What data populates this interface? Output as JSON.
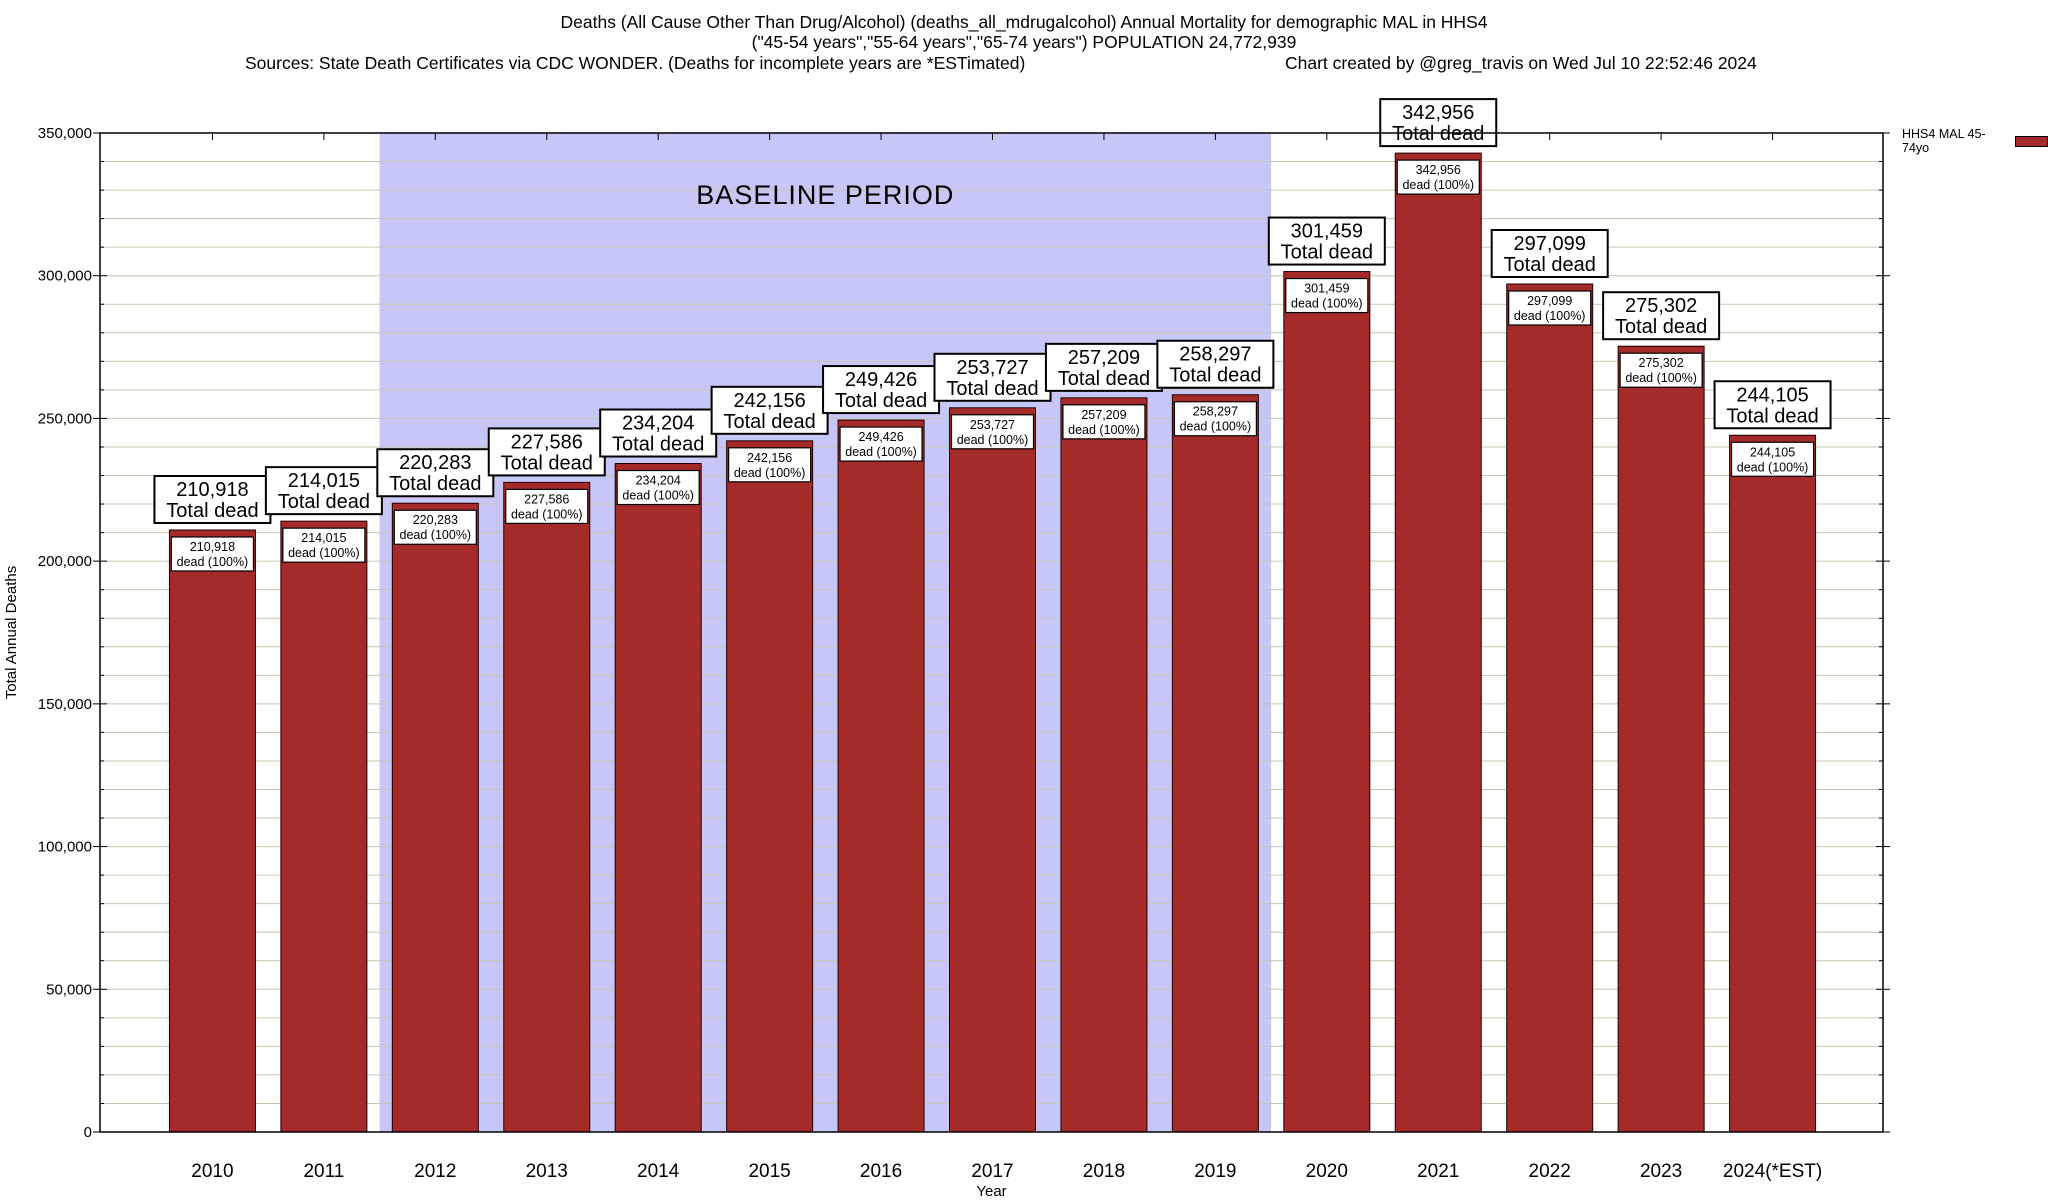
{
  "header": {
    "title_line1": "Deaths (All Cause Other Than Drug/Alcohol) (deaths_all_mdrugalcohol) Annual Mortality for demographic MAL in HHS4",
    "title_line2": "(\"45-54 years\",\"55-64 years\",\"65-74 years\") POPULATION 24,772,939",
    "sources": "Sources: State Death Certificates via CDC WONDER. (Deaths for incomplete years are *ESTimated)",
    "created_by": "Chart created by @greg_travis on Wed Jul 10 22:52:46 2024"
  },
  "chart_data": {
    "type": "bar",
    "title": "Deaths (All Cause Other Than Drug/Alcohol) (deaths_all_mdrugalcohol) Annual Mortality for demographic MAL in HHS4",
    "subtitle": "(\"45-54 years\",\"55-64 years\",\"65-74 years\") POPULATION 24,772,939",
    "xlabel": "Year",
    "ylabel": "Total Annual Deaths",
    "ylim": [
      0,
      350000
    ],
    "ytick_step": 50000,
    "minor_grid_step": 10000,
    "ytick_labels": [
      "0",
      "50,000",
      "100,000",
      "150,000",
      "200,000",
      "250,000",
      "300,000",
      "350,000"
    ],
    "grid": true,
    "bar_color": "#A52A2A",
    "bar_border_color": "#200000",
    "categories": [
      "2010",
      "2011",
      "2012",
      "2013",
      "2014",
      "2015",
      "2016",
      "2017",
      "2018",
      "2019",
      "2020",
      "2021",
      "2022",
      "2023",
      "2024(*EST)"
    ],
    "values": [
      210918,
      214015,
      220283,
      227586,
      234204,
      242156,
      249426,
      253727,
      257209,
      258297,
      301459,
      342956,
      297099,
      275302,
      244105
    ],
    "bars": [
      {
        "category": "2010",
        "value": 210918,
        "above_label": "210,918 Total dead",
        "inside_label": "210,918 dead (100%)"
      },
      {
        "category": "2011",
        "value": 214015,
        "above_label": "214,015 Total dead",
        "inside_label": "214,015 dead (100%)"
      },
      {
        "category": "2012",
        "value": 220283,
        "above_label": "220,283 Total dead",
        "inside_label": "220,283 dead (100%)"
      },
      {
        "category": "2013",
        "value": 227586,
        "above_label": "227,586 Total dead",
        "inside_label": "227,586 dead (100%)"
      },
      {
        "category": "2014",
        "value": 234204,
        "above_label": "234,204 Total dead",
        "inside_label": "234,204 dead (100%)"
      },
      {
        "category": "2015",
        "value": 242156,
        "above_label": "242,156 Total dead",
        "inside_label": "242,156 dead (100%)"
      },
      {
        "category": "2016",
        "value": 249426,
        "above_label": "249,426 Total dead",
        "inside_label": "249,426 dead (100%)"
      },
      {
        "category": "2017",
        "value": 253727,
        "above_label": "253,727 Total dead",
        "inside_label": "253,727 dead (100%)"
      },
      {
        "category": "2018",
        "value": 257209,
        "above_label": "257,209 Total dead",
        "inside_label": "257,209 dead (100%)"
      },
      {
        "category": "2019",
        "value": 258297,
        "above_label": "258,297 Total dead",
        "inside_label": "258,297 dead (100%)"
      },
      {
        "category": "2020",
        "value": 301459,
        "above_label": "301,459 Total dead",
        "inside_label": "301,459 dead (100%)"
      },
      {
        "category": "2021",
        "value": 342956,
        "above_label": "342,956 Total dead",
        "inside_label": "342,956 dead (100%)"
      },
      {
        "category": "2022",
        "value": 297099,
        "above_label": "297,099 Total dead",
        "inside_label": "297,099 dead (100%)"
      },
      {
        "category": "2023",
        "value": 275302,
        "above_label": "275,302 Total dead",
        "inside_label": "275,302 dead (100%)"
      },
      {
        "category": "2024(*EST)",
        "value": 244105,
        "above_label": "244,105 Total dead",
        "inside_label": "244,105 dead (100%)"
      }
    ],
    "bar_label_above_suffix": "Total dead",
    "bar_label_inside_suffix": "dead (100%)",
    "baseline": {
      "label": "BASELINE PERIOD",
      "from_category": "2012",
      "to_category": "2019",
      "fill": "#C6C6F7"
    },
    "legend": {
      "label": "HHS4 MAL 45-74yo",
      "position": "top-right",
      "swatch_color": "#A52A2A"
    }
  }
}
